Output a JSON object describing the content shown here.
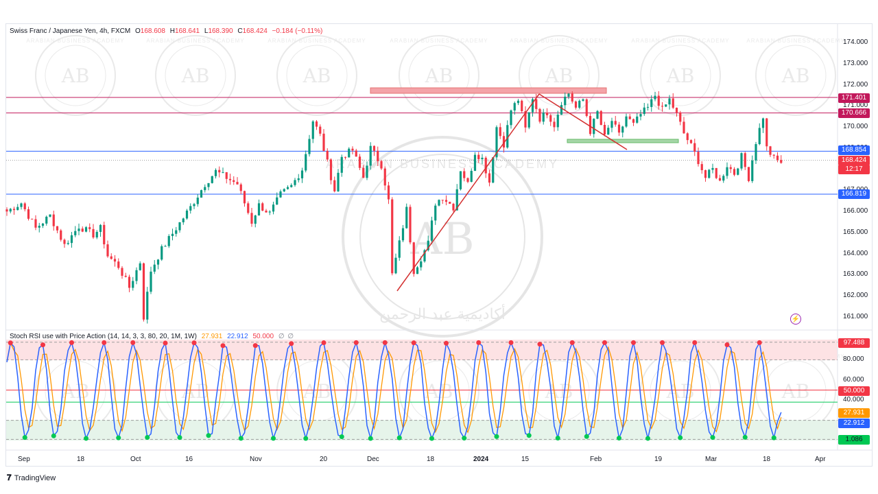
{
  "top_header": "",
  "legend": {
    "title": "Swiss Franc / Japanese Yen, 4h, FXCM",
    "o_label": "O",
    "o_value": "168.608",
    "h_label": "H",
    "h_value": "168.641",
    "l_label": "L",
    "l_value": "168.390",
    "c_label": "C",
    "c_value": "168.424",
    "change": "−0.184 (−0.11%)"
  },
  "indicator_legend": {
    "title": "Stoch RSI use with Price Action (14, 14, 3, 3, 80, 20, 1M, 1W)",
    "k_value": "27.931",
    "d_value": "22.912",
    "mid_value": "50.000",
    "extra1": "∅",
    "extra2": "∅"
  },
  "price_tags": {
    "resistance_upper": "171.401",
    "resistance_lower": "170.666",
    "support_blue": "168.854",
    "last_price": "168.424",
    "countdown": "12:17",
    "support_lower": "166.819"
  },
  "osc_tags": {
    "max": "97.488",
    "mid": "50.000",
    "k": "27.931",
    "d": "22.912",
    "min": "1.086"
  },
  "y_ticks": [
    "174.000",
    "173.000",
    "172.000",
    "171.000",
    "170.000",
    "169.000",
    "167.000",
    "166.000",
    "165.000",
    "164.000",
    "163.000",
    "162.000",
    "161.000"
  ],
  "osc_ticks": [
    "80.000",
    "60.000",
    "40.000"
  ],
  "x_ticks": [
    "Sep",
    "18",
    "Oct",
    "16",
    "Nov",
    "20",
    "Dec",
    "18",
    "2024",
    "15",
    "Feb",
    "19",
    "Mar",
    "18",
    "Apr"
  ],
  "footer": {
    "brand": "TradingView"
  },
  "watermark": {
    "text": "ARABIAN BUSINESS ACADEMY",
    "mark": "AB",
    "arabic": "أكاديمية عبد الرحمن"
  },
  "colors": {
    "up": "#089981",
    "down": "#f23645",
    "resistance": "#c2185b",
    "support": "#2962ff",
    "k_line": "#2962ff",
    "d_line": "#ff9800",
    "ob_zone": "#fde2e4",
    "os_zone": "#e6f4ea"
  },
  "chart_data": {
    "type": "candlestick",
    "symbol": "CHF/JPY",
    "timeframe": "4h",
    "ylim": [
      160.5,
      174.5
    ],
    "path": [
      [
        0,
        166.0
      ],
      [
        4,
        166.4
      ],
      [
        8,
        165.2
      ],
      [
        12,
        165.8
      ],
      [
        16,
        164.4
      ],
      [
        20,
        165.3
      ],
      [
        24,
        164.9
      ],
      [
        26,
        165.2
      ],
      [
        28,
        163.9
      ],
      [
        31,
        163.4
      ],
      [
        34,
        162.4
      ],
      [
        37,
        163.6
      ],
      [
        38,
        161.0
      ],
      [
        40,
        163.2
      ],
      [
        43,
        164.2
      ],
      [
        47,
        165.2
      ],
      [
        51,
        166.2
      ],
      [
        55,
        167.3
      ],
      [
        58,
        167.9
      ],
      [
        61,
        167.6
      ],
      [
        64,
        167.3
      ],
      [
        66,
        166.4
      ],
      [
        68,
        165.5
      ],
      [
        70,
        166.3
      ],
      [
        73,
        165.9
      ],
      [
        76,
        166.8
      ],
      [
        79,
        167.2
      ],
      [
        82,
        168.0
      ],
      [
        85,
        170.3
      ],
      [
        87,
        169.6
      ],
      [
        89,
        168.3
      ],
      [
        91,
        167.0
      ],
      [
        93,
        168.6
      ],
      [
        96,
        168.9
      ],
      [
        99,
        167.6
      ],
      [
        101,
        169.0
      ],
      [
        104,
        168.2
      ],
      [
        106,
        166.5
      ],
      [
        107,
        163.0
      ],
      [
        109,
        164.5
      ],
      [
        111,
        166.1
      ],
      [
        113,
        163.2
      ],
      [
        115,
        163.8
      ],
      [
        117,
        164.5
      ],
      [
        119,
        166.4
      ],
      [
        121,
        166.7
      ],
      [
        124,
        166.2
      ],
      [
        126,
        168.0
      ],
      [
        128,
        167.3
      ],
      [
        130,
        168.8
      ],
      [
        132,
        168.5
      ],
      [
        134,
        167.4
      ],
      [
        136,
        170.0
      ],
      [
        138,
        169.2
      ],
      [
        140,
        170.8
      ],
      [
        142,
        171.3
      ],
      [
        144,
        169.9
      ],
      [
        146,
        171.4
      ],
      [
        148,
        170.4
      ],
      [
        150,
        170.7
      ],
      [
        152,
        170.1
      ],
      [
        154,
        171.2
      ],
      [
        156,
        171.6
      ],
      [
        158,
        170.9
      ],
      [
        160,
        171.3
      ],
      [
        162,
        169.8
      ],
      [
        164,
        170.7
      ],
      [
        166,
        169.5
      ],
      [
        168,
        170.3
      ],
      [
        170,
        169.6
      ],
      [
        172,
        170.5
      ],
      [
        174,
        170.1
      ],
      [
        176,
        170.6
      ],
      [
        178,
        170.9
      ],
      [
        180,
        171.5
      ],
      [
        182,
        170.8
      ],
      [
        184,
        171.3
      ],
      [
        186,
        170.6
      ],
      [
        188,
        169.7
      ],
      [
        190,
        169.1
      ],
      [
        192,
        168.4
      ],
      [
        194,
        167.6
      ],
      [
        196,
        168.0
      ],
      [
        198,
        167.4
      ],
      [
        200,
        168.2
      ],
      [
        202,
        167.8
      ],
      [
        204,
        168.6
      ],
      [
        206,
        167.6
      ],
      [
        208,
        169.3
      ],
      [
        210,
        170.5
      ],
      [
        211,
        169.0
      ],
      [
        213,
        168.5
      ],
      [
        215,
        168.3
      ]
    ],
    "horizontal_levels": [
      171.401,
      170.666,
      168.854,
      166.819
    ],
    "last_price": 168.424,
    "osc_levels": {
      "upper": 80,
      "middle": 50,
      "lower": 20,
      "max": 97.488,
      "min": 1.086
    },
    "osc_last": {
      "k": 27.931,
      "d": 22.912
    }
  }
}
